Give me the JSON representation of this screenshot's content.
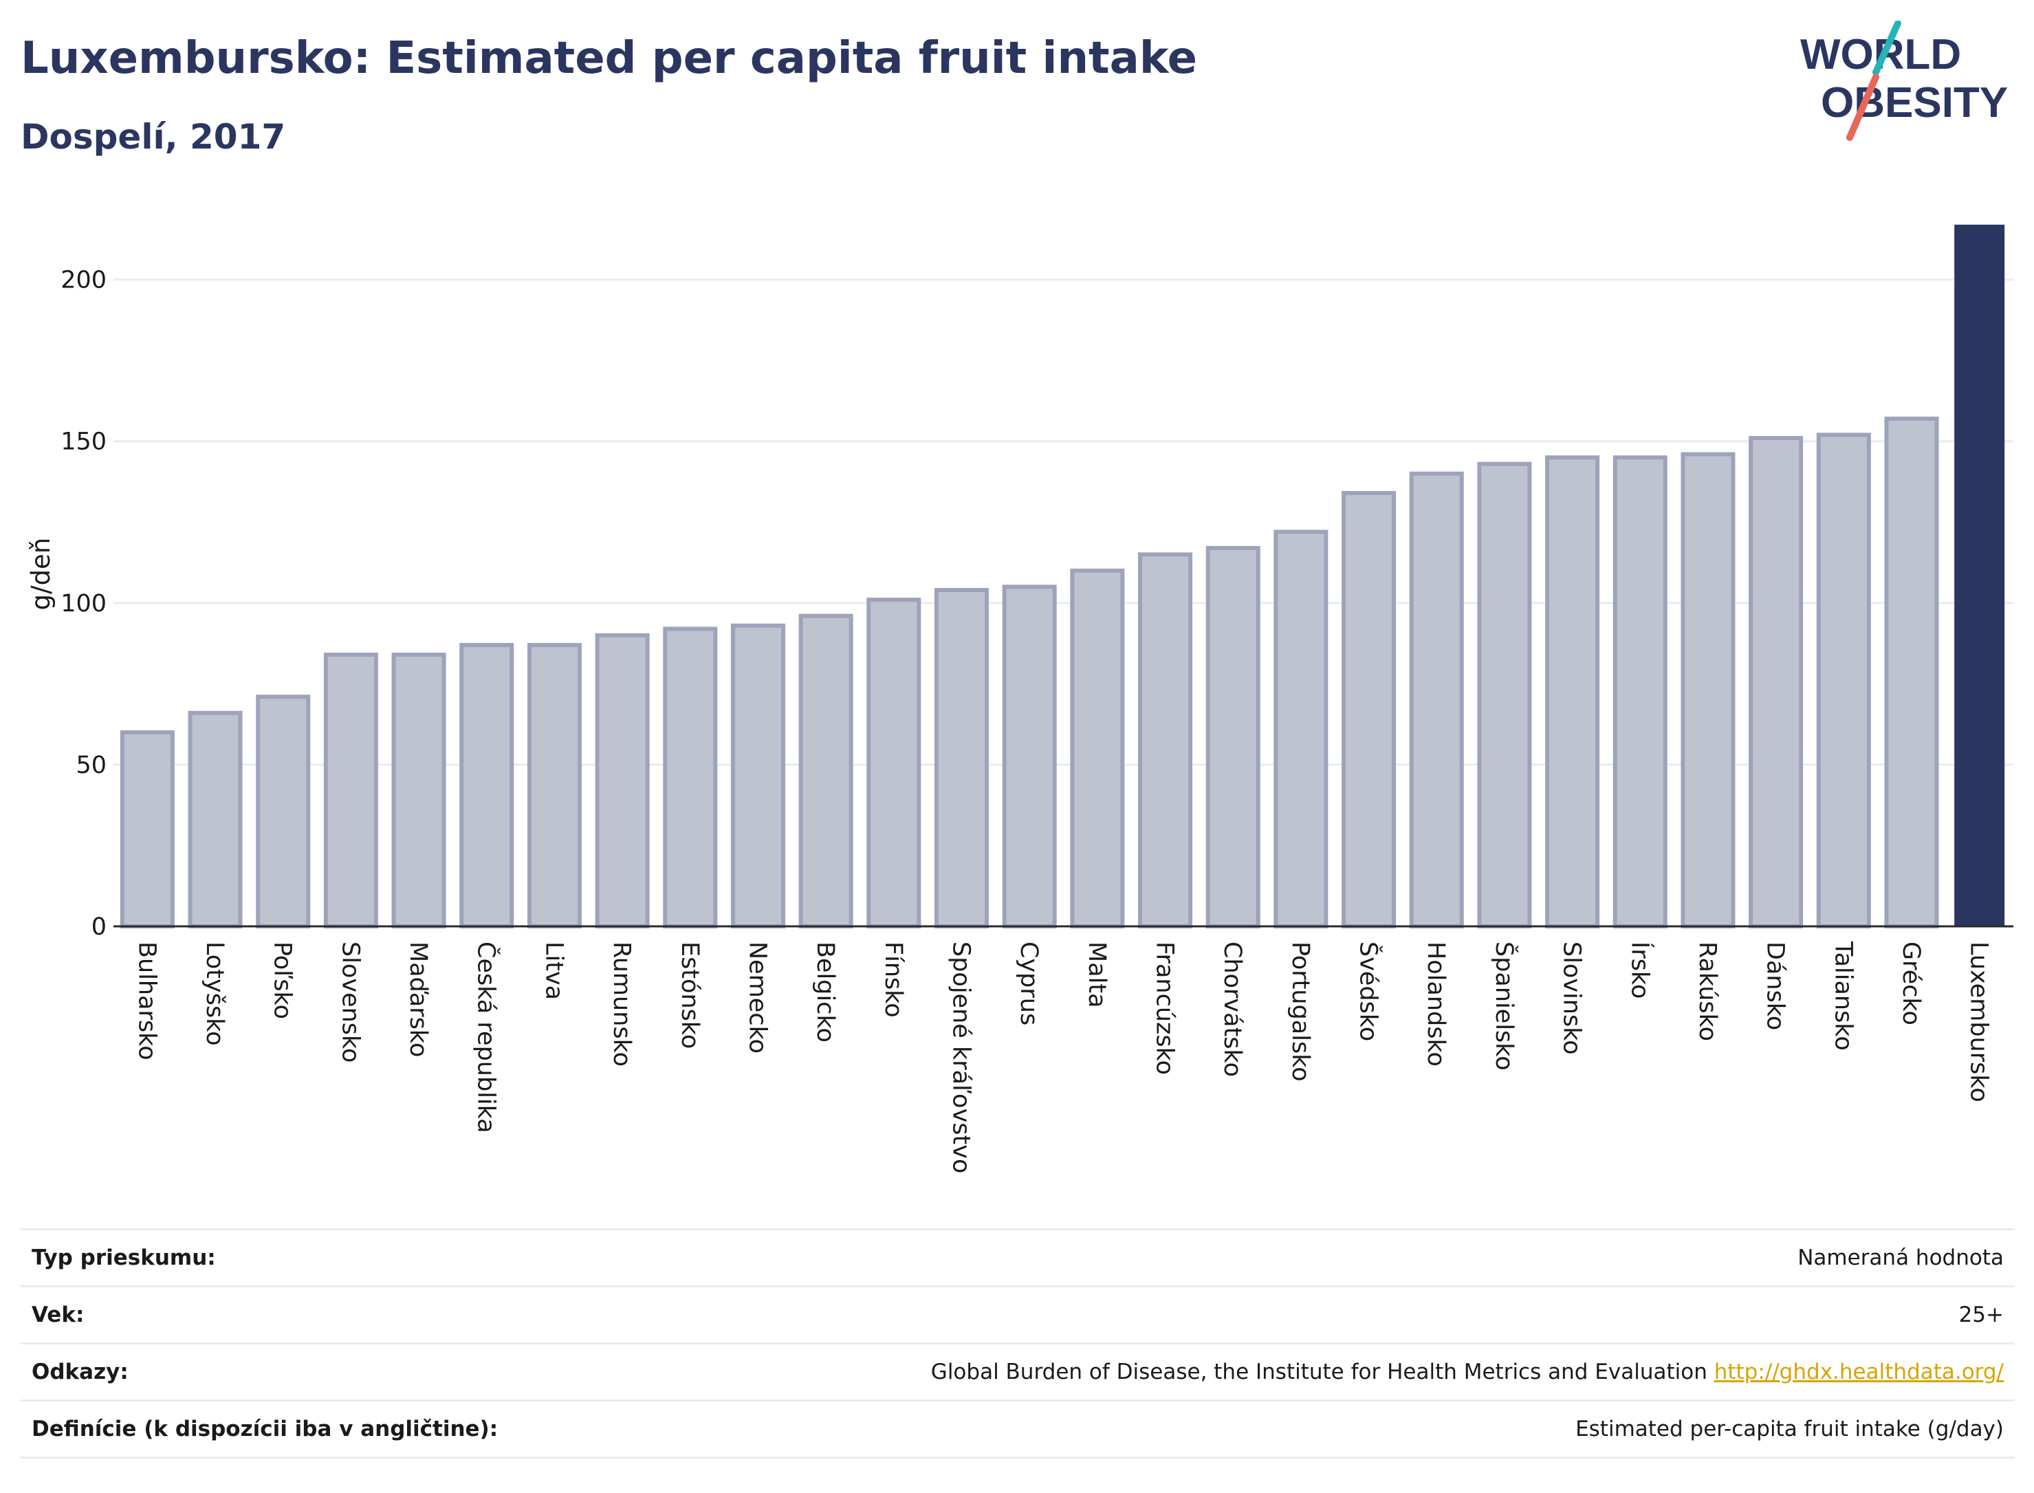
{
  "header": {
    "title": "Luxembursko: Estimated per capita fruit intake",
    "subtitle": "Dospelí, 2017"
  },
  "logo": {
    "line1": "WORLD",
    "line2": "OBESITY"
  },
  "colors": {
    "highlight": "#2b3660",
    "bar_fill": "#bfc3d0",
    "bar_stroke": "#9da3bb",
    "grid": "#e9ecef",
    "logo_teal": "#27b4b8",
    "logo_coral": "#e8675a"
  },
  "chart_data": {
    "type": "bar",
    "ylabel": "g/deň",
    "ylim": [
      0,
      218
    ],
    "yticks": [
      0,
      50,
      100,
      150,
      200
    ],
    "grid": true,
    "highlight_category": "Luxembursko",
    "categories": [
      "Bulharsko",
      "Lotyšsko",
      "Poľsko",
      "Slovensko",
      "Maďarsko",
      "Česká republika",
      "Litva",
      "Rumunsko",
      "Estónsko",
      "Nemecko",
      "Belgicko",
      "Fínsko",
      "Spojené kráľovstvo",
      "Cyprus",
      "Malta",
      "Francúzsko",
      "Chorvátsko",
      "Portugalsko",
      "Švédsko",
      "Holandsko",
      "Španielsko",
      "Slovinsko",
      "Írsko",
      "Rakúsko",
      "Dánsko",
      "Taliansko",
      "Grécko",
      "Luxembursko"
    ],
    "values": [
      60,
      66,
      71,
      84,
      84,
      87,
      87,
      90,
      92,
      93,
      96,
      101,
      104,
      105,
      110,
      115,
      117,
      122,
      134,
      140,
      143,
      145,
      145,
      146,
      151,
      152,
      157,
      217
    ]
  },
  "info": {
    "rows": [
      {
        "label": "Typ prieskumu:",
        "value": "Nameraná hodnota"
      },
      {
        "label": "Vek:",
        "value": "25+"
      },
      {
        "label": "Odkazy:",
        "value": "Global Burden of Disease, the Institute for Health Metrics and Evaluation",
        "link": "http://ghdx.healthdata.org/"
      },
      {
        "label": "Definície (k dispozícii iba v angličtine):",
        "value": "Estimated per-capita fruit intake (g/day)"
      }
    ]
  }
}
